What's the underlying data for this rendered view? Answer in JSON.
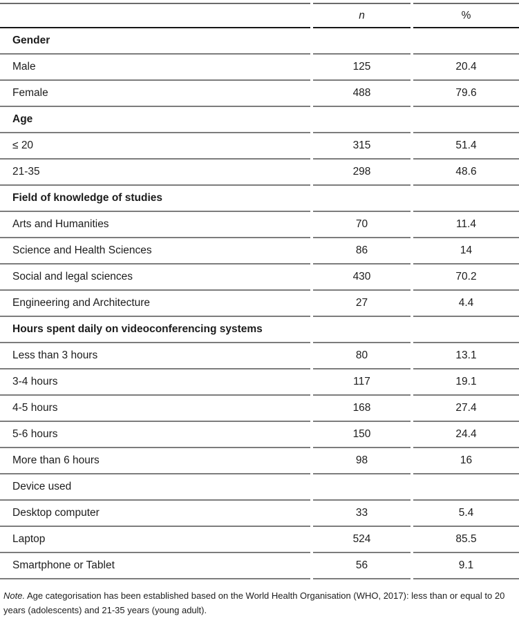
{
  "table": {
    "columns": {
      "n": "n",
      "percent": "%"
    },
    "rows": [
      {
        "label": "Gender",
        "style": "section-bold",
        "n": "",
        "pct": ""
      },
      {
        "label": "Male",
        "style": "data",
        "n": "125",
        "pct": "20.4"
      },
      {
        "label": "Female",
        "style": "data",
        "n": "488",
        "pct": "79.6"
      },
      {
        "label": "Age",
        "style": "section-bold",
        "n": "",
        "pct": ""
      },
      {
        "label": "≤ 20",
        "style": "data",
        "n": "315",
        "pct": "51.4"
      },
      {
        "label": "21-35",
        "style": "data",
        "n": "298",
        "pct": "48.6"
      },
      {
        "label": "Field of knowledge of studies",
        "style": "section-bold",
        "n": "",
        "pct": ""
      },
      {
        "label": "Arts and Humanities",
        "style": "data",
        "n": "70",
        "pct": "11.4"
      },
      {
        "label": "Science and Health Sciences",
        "style": "data",
        "n": "86",
        "pct": "14"
      },
      {
        "label": "Social and legal sciences",
        "style": "data",
        "n": "430",
        "pct": "70.2"
      },
      {
        "label": "Engineering and Architecture",
        "style": "data",
        "n": "27",
        "pct": "4.4"
      },
      {
        "label": "Hours spent daily on videoconferencing systems",
        "style": "section-bold",
        "n": "",
        "pct": ""
      },
      {
        "label": "Less than 3 hours",
        "style": "data",
        "n": "80",
        "pct": "13.1"
      },
      {
        "label": "3-4 hours",
        "style": "data",
        "n": "117",
        "pct": "19.1"
      },
      {
        "label": "4-5 hours",
        "style": "data",
        "n": "168",
        "pct": "27.4"
      },
      {
        "label": "5-6 hours",
        "style": "data",
        "n": "150",
        "pct": "24.4"
      },
      {
        "label": "More than 6 hours",
        "style": "data",
        "n": "98",
        "pct": "16"
      },
      {
        "label": "Device used",
        "style": "section-plain",
        "n": "",
        "pct": ""
      },
      {
        "label": "Desktop computer",
        "style": "data",
        "n": "33",
        "pct": "5.4"
      },
      {
        "label": "Laptop",
        "style": "data",
        "n": "524",
        "pct": "85.5"
      },
      {
        "label": "Smartphone or Tablet",
        "style": "data",
        "n": "56",
        "pct": "9.1"
      }
    ]
  },
  "note": {
    "label": "Note.",
    "text": " Age categorisation has been established based on the World Health Organisation (WHO, 2017): less than or equal to 20 years (adolescents) and 21-35 years (young adult)."
  },
  "colors": {
    "top_rule": "#6a6a6a",
    "header_rule": "#161616",
    "row_rule": "#7c7c7c",
    "text": "#1c1c1c"
  }
}
